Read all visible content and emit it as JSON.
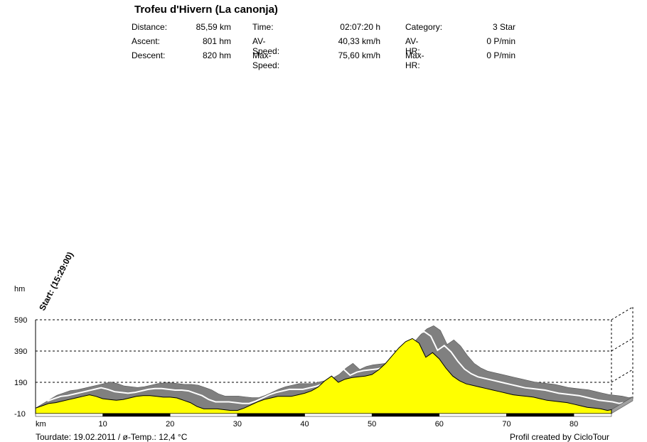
{
  "header": {
    "title": "Trofeu d'Hivern (La canonja)",
    "col1": [
      {
        "label": "Distance:",
        "value": "85,59 km"
      },
      {
        "label": "Ascent:",
        "value": "801 hm"
      },
      {
        "label": "Descent:",
        "value": "820 hm"
      }
    ],
    "col2": [
      {
        "label": "Time:",
        "value": "02:07:20 h"
      },
      {
        "label": "AV-Speed:",
        "value": "40,33 km/h"
      },
      {
        "label": "Max-Speed:",
        "value": "75,60 km/h"
      }
    ],
    "col3": [
      {
        "label": "Category:",
        "value": "3 Star"
      },
      {
        "label": "AV-HR:",
        "value": "0 P/min"
      },
      {
        "label": "Max-HR:",
        "value": "0 P/min"
      }
    ]
  },
  "footer": {
    "left": "Tourdate: 19.02.2011  /  ø-Temp.: 12,4 °C",
    "right": "Profil created by CicloTour"
  },
  "chart_data": {
    "type": "area",
    "start_label": "Start: (15:29:00)",
    "ylabel": "hm",
    "xlabel": "km",
    "yticks": [
      -10,
      190,
      390,
      590
    ],
    "xticks": [
      10,
      20,
      30,
      40,
      50,
      60,
      70,
      80
    ],
    "xlim": [
      0,
      85.59
    ],
    "ylim": [
      -10,
      590
    ],
    "colors": {
      "fill": "#ffff00",
      "wall": "#808080",
      "hr": "#808080",
      "speed": "#ffffff"
    },
    "x": [
      0,
      1,
      2,
      3,
      4,
      5,
      6,
      7,
      8,
      9,
      10,
      11,
      12,
      13,
      14,
      15,
      16,
      17,
      18,
      19,
      20,
      21,
      22,
      23,
      24,
      25,
      26,
      27,
      28,
      29,
      30,
      31,
      32,
      33,
      34,
      35,
      36,
      37,
      38,
      39,
      40,
      41,
      42,
      43,
      44,
      45,
      46,
      47,
      48,
      49,
      50,
      51,
      52,
      53,
      54,
      55,
      56,
      57,
      58,
      59,
      60,
      61,
      62,
      63,
      64,
      65,
      66,
      67,
      68,
      69,
      70,
      71,
      72,
      73,
      74,
      75,
      76,
      77,
      78,
      79,
      80,
      81,
      82,
      83,
      84,
      85,
      85.59
    ],
    "elevation": [
      25,
      40,
      55,
      60,
      70,
      80,
      90,
      100,
      110,
      100,
      85,
      80,
      75,
      80,
      90,
      100,
      105,
      105,
      100,
      95,
      95,
      90,
      75,
      60,
      35,
      20,
      20,
      20,
      15,
      10,
      10,
      25,
      45,
      65,
      80,
      90,
      100,
      100,
      100,
      110,
      120,
      135,
      160,
      200,
      230,
      190,
      210,
      220,
      225,
      230,
      240,
      270,
      310,
      360,
      410,
      450,
      470,
      440,
      350,
      380,
      340,
      280,
      230,
      200,
      180,
      170,
      160,
      150,
      140,
      130,
      120,
      110,
      105,
      100,
      95,
      85,
      75,
      70,
      65,
      60,
      50,
      40,
      30,
      25,
      20,
      10,
      15
    ]
  }
}
